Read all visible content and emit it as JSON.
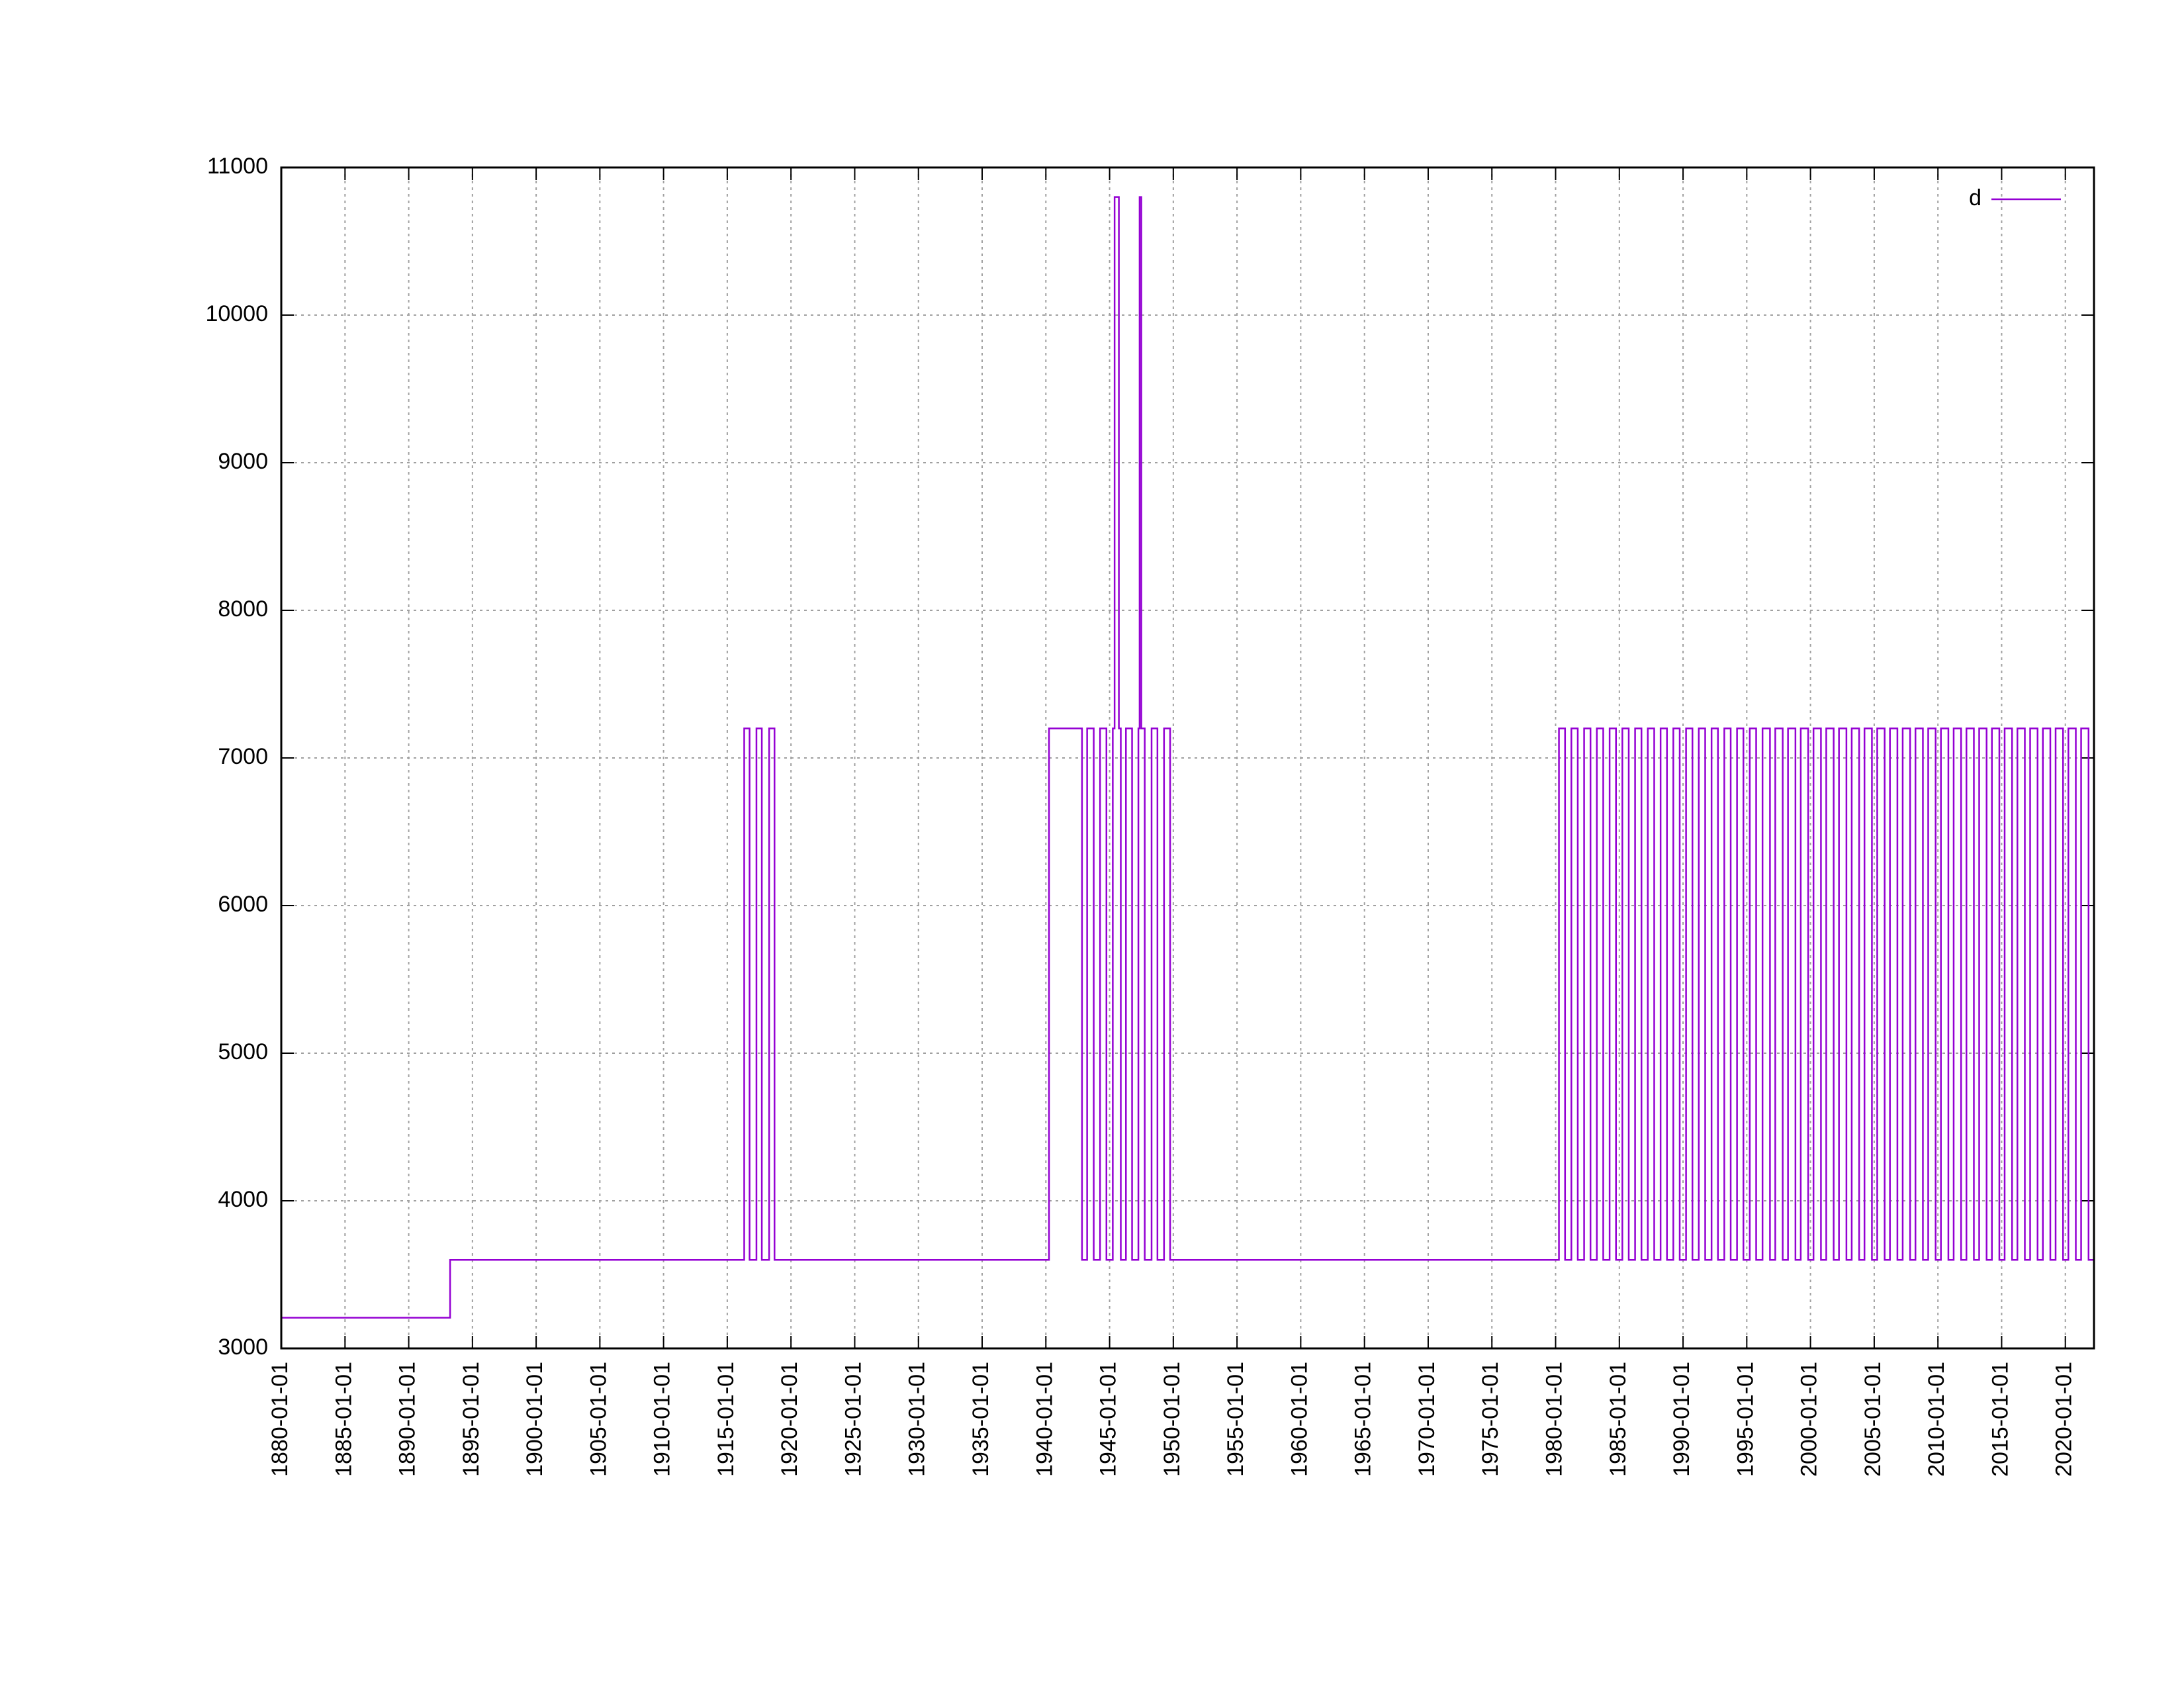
{
  "chart_data": {
    "type": "line",
    "drawstyle": "steps",
    "grid": true,
    "legend": "top-right",
    "xlim": [
      "1880-01-01",
      "2022-04-01"
    ],
    "xticks": [
      "1880-01-01",
      "1885-01-01",
      "1890-01-01",
      "1895-01-01",
      "1900-01-01",
      "1905-01-01",
      "1910-01-01",
      "1915-01-01",
      "1920-01-01",
      "1925-01-01",
      "1930-01-01",
      "1935-01-01",
      "1940-01-01",
      "1945-01-01",
      "1950-01-01",
      "1955-01-01",
      "1960-01-01",
      "1965-01-01",
      "1970-01-01",
      "1975-01-01",
      "1980-01-01",
      "1985-01-01",
      "1990-01-01",
      "1995-01-01",
      "2000-01-01",
      "2005-01-01",
      "2010-01-01",
      "2015-01-01",
      "2020-01-01"
    ],
    "ylim": [
      3000,
      11000
    ],
    "yticks": [
      3000,
      4000,
      5000,
      6000,
      7000,
      8000,
      9000,
      10000,
      11000
    ],
    "series": [
      {
        "name": "d",
        "color": "#9400d3",
        "x": [
          "1880-01-01",
          "1893-04-01",
          "1916-04-30",
          "1916-10-01",
          "1917-04-16",
          "1917-09-17",
          "1918-04-15",
          "1918-09-16",
          "1940-04-01",
          "1942-11-02",
          "1943-03-29",
          "1943-10-04",
          "1944-04-03",
          "1944-10-02",
          "1945-04-02",
          "1945-05-24",
          "1945-09-24",
          "1945-11-18",
          "1946-04-14",
          "1946-10-07",
          "1947-04-06",
          "1947-05-11",
          "1947-06-29",
          "1947-10-05",
          "1948-04-18",
          "1948-10-03",
          "1949-04-10",
          "1949-10-02",
          "1980-04-06",
          "1980-09-28",
          "1981-03-28",
          "1981-09-27",
          "1982-03-28",
          "1982-09-27",
          "1983-03-28",
          "1983-09-27",
          "1984-03-28",
          "1984-09-27",
          "1985-03-28",
          "1985-09-27",
          "1986-03-28",
          "1986-09-27",
          "1987-03-28",
          "1987-09-27",
          "1988-03-28",
          "1988-09-27",
          "1989-03-28",
          "1989-09-27",
          "1990-03-28",
          "1990-09-27",
          "1991-03-28",
          "1991-09-27",
          "1992-03-28",
          "1992-09-27",
          "1993-03-28",
          "1993-09-27",
          "1994-03-28",
          "1994-09-27",
          "1995-03-28",
          "1995-09-27",
          "1996-03-28",
          "1996-10-27",
          "1997-03-28",
          "1997-10-27",
          "1998-03-28",
          "1998-10-27",
          "1999-03-28",
          "1999-10-27",
          "2000-03-28",
          "2000-10-27",
          "2001-03-28",
          "2001-10-27",
          "2002-03-28",
          "2002-10-27",
          "2003-03-28",
          "2003-10-27",
          "2004-03-28",
          "2004-10-27",
          "2005-03-28",
          "2005-10-27",
          "2006-03-28",
          "2006-10-27",
          "2007-03-28",
          "2007-10-27",
          "2008-03-28",
          "2008-10-27",
          "2009-03-28",
          "2009-10-27",
          "2010-03-28",
          "2010-10-27",
          "2011-03-28",
          "2011-10-27",
          "2012-03-28",
          "2012-10-27",
          "2013-03-28",
          "2013-10-27",
          "2014-03-28",
          "2014-10-27",
          "2015-03-28",
          "2015-10-27",
          "2016-03-28",
          "2016-10-27",
          "2017-03-28",
          "2017-10-27",
          "2018-03-28",
          "2018-10-27",
          "2019-03-28",
          "2019-10-27",
          "2020-03-28",
          "2020-10-27",
          "2021-03-28",
          "2021-10-27",
          "2022-03-27"
        ],
        "values": [
          3208,
          3600,
          7200,
          3600,
          7200,
          3600,
          7200,
          3600,
          7200,
          3600,
          7200,
          3600,
          7200,
          3600,
          7200,
          10800,
          7200,
          3600,
          7200,
          3600,
          7200,
          10800,
          7200,
          3600,
          7200,
          3600,
          7200,
          3600,
          7200,
          3600,
          7200,
          3600,
          7200,
          3600,
          7200,
          3600,
          7200,
          3600,
          7200,
          3600,
          7200,
          3600,
          7200,
          3600,
          7200,
          3600,
          7200,
          3600,
          7200,
          3600,
          7200,
          3600,
          7200,
          3600,
          7200,
          3600,
          7200,
          3600,
          7200,
          3600,
          7200,
          3600,
          7200,
          3600,
          7200,
          3600,
          7200,
          3600,
          7200,
          3600,
          7200,
          3600,
          7200,
          3600,
          7200,
          3600,
          7200,
          3600,
          7200,
          3600,
          7200,
          3600,
          7200,
          3600,
          7200,
          3600,
          7200,
          3600,
          7200,
          3600,
          7200,
          3600,
          7200,
          3600,
          7200,
          3600,
          7200,
          3600,
          7200,
          3600,
          7200,
          3600,
          7200,
          3600,
          7200,
          3600,
          7200,
          3600,
          7200,
          3600,
          7200,
          3600,
          7200
        ]
      }
    ]
  }
}
